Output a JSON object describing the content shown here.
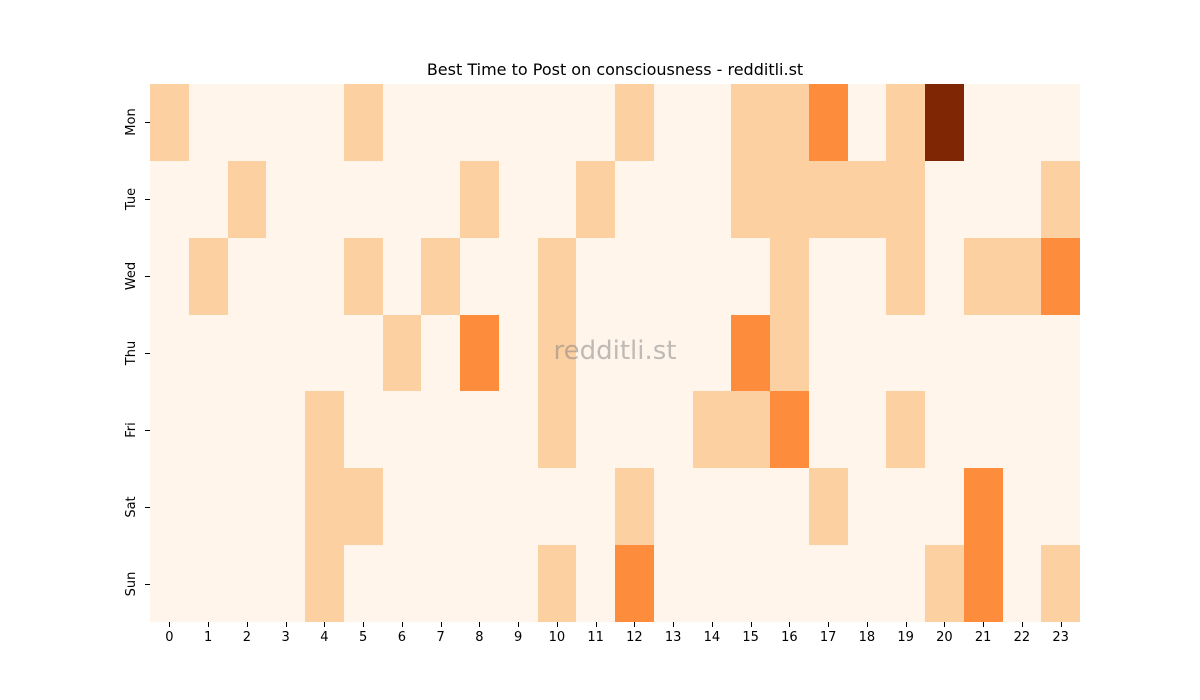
{
  "title": "Best Time to Post on consciousness - redditli.st",
  "watermark": "redditli.st",
  "colors": [
    "#fff5eb",
    "#fdd0a2",
    "#fd8d3c",
    "#7f2704"
  ],
  "chart_data": {
    "type": "heatmap",
    "title": "Best Time to Post on consciousness - redditli.st",
    "xlabel": "",
    "ylabel": "",
    "x": [
      "0",
      "1",
      "2",
      "3",
      "4",
      "5",
      "6",
      "7",
      "8",
      "9",
      "10",
      "11",
      "12",
      "13",
      "14",
      "15",
      "16",
      "17",
      "18",
      "19",
      "20",
      "21",
      "22",
      "23"
    ],
    "y": [
      "Mon",
      "Tue",
      "Wed",
      "Thu",
      "Fri",
      "Sat",
      "Sun"
    ],
    "values": [
      [
        1,
        0,
        0,
        0,
        0,
        1,
        0,
        0,
        0,
        0,
        0,
        0,
        1,
        0,
        0,
        1,
        1,
        2,
        0,
        1,
        3,
        0,
        0,
        0
      ],
      [
        0,
        0,
        1,
        0,
        0,
        0,
        0,
        0,
        1,
        0,
        0,
        1,
        0,
        0,
        0,
        1,
        1,
        1,
        1,
        1,
        0,
        0,
        0,
        1
      ],
      [
        0,
        1,
        0,
        0,
        0,
        1,
        0,
        1,
        0,
        0,
        1,
        0,
        0,
        0,
        0,
        0,
        1,
        0,
        0,
        1,
        0,
        1,
        1,
        2
      ],
      [
        0,
        0,
        0,
        0,
        0,
        0,
        1,
        0,
        2,
        0,
        1,
        0,
        0,
        0,
        0,
        2,
        1,
        0,
        0,
        0,
        0,
        0,
        0,
        0
      ],
      [
        0,
        0,
        0,
        0,
        1,
        0,
        0,
        0,
        0,
        0,
        1,
        0,
        0,
        0,
        1,
        1,
        2,
        0,
        0,
        1,
        0,
        0,
        0,
        0
      ],
      [
        0,
        0,
        0,
        0,
        1,
        1,
        0,
        0,
        0,
        0,
        0,
        0,
        1,
        0,
        0,
        0,
        0,
        1,
        0,
        0,
        0,
        2,
        0,
        0
      ],
      [
        0,
        0,
        0,
        0,
        1,
        0,
        0,
        0,
        0,
        0,
        1,
        0,
        2,
        0,
        0,
        0,
        0,
        0,
        0,
        0,
        1,
        2,
        0,
        1
      ]
    ],
    "colormap": "Oranges",
    "colorbar": false
  }
}
